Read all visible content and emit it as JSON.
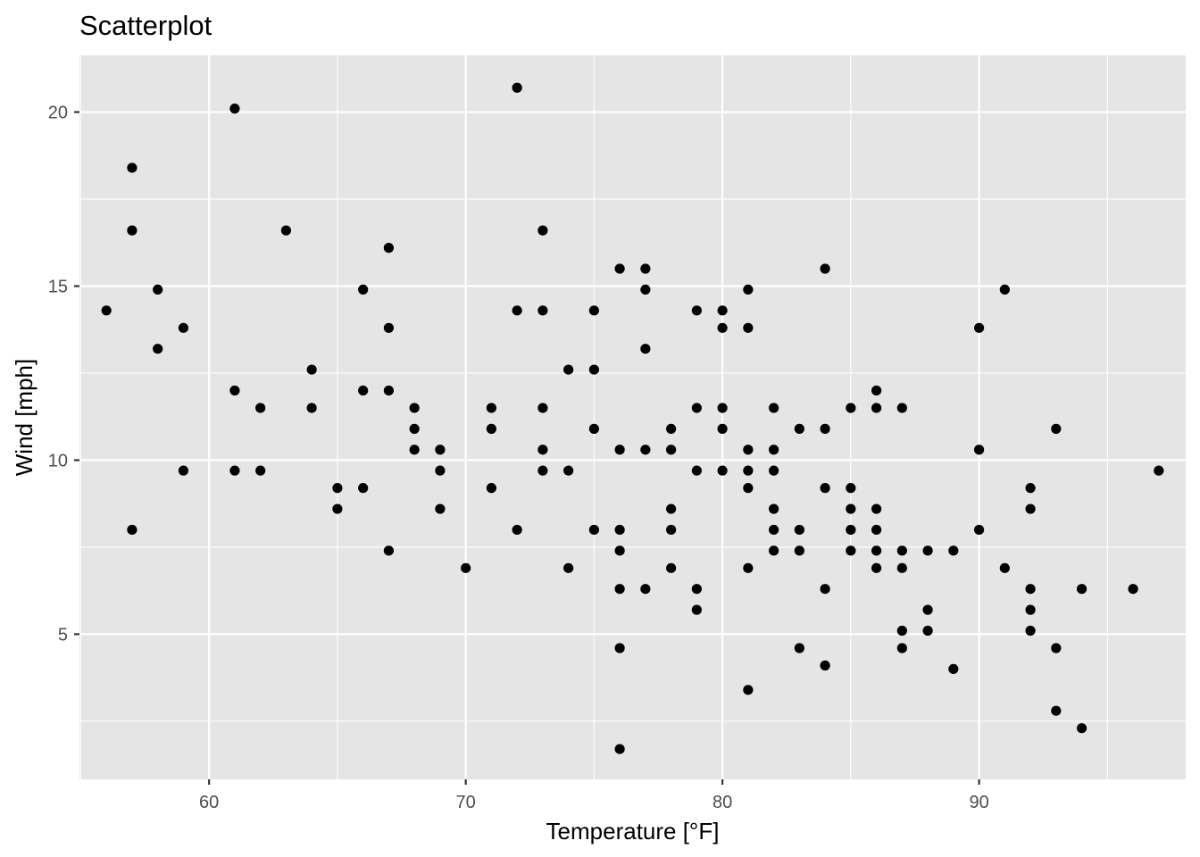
{
  "chart_data": {
    "type": "scatter",
    "title": "Scatterplot",
    "xlabel": "Temperature [°F]",
    "ylabel": "Wind [mph]",
    "xlim": [
      54.95,
      98.05
    ],
    "ylim": [
      0.83,
      21.63
    ],
    "x_ticks": [
      60,
      70,
      80,
      90
    ],
    "y_ticks": [
      5,
      10,
      15,
      20
    ],
    "x_tick_labels": [
      "60",
      "70",
      "80",
      "90"
    ],
    "y_tick_labels": [
      "5",
      "10",
      "15",
      "20"
    ],
    "grid": true,
    "panel_background": "#e5e5e5",
    "grid_color": "#ffffff",
    "point_color": "#000000",
    "points": [
      {
        "x": 56,
        "y": 14.3
      },
      {
        "x": 57,
        "y": 18.4
      },
      {
        "x": 57,
        "y": 16.6
      },
      {
        "x": 57,
        "y": 8.0
      },
      {
        "x": 58,
        "y": 14.9
      },
      {
        "x": 58,
        "y": 13.2
      },
      {
        "x": 59,
        "y": 13.8
      },
      {
        "x": 59,
        "y": 9.7
      },
      {
        "x": 61,
        "y": 20.1
      },
      {
        "x": 61,
        "y": 12.0
      },
      {
        "x": 61,
        "y": 9.7
      },
      {
        "x": 62,
        "y": 11.5
      },
      {
        "x": 62,
        "y": 9.7
      },
      {
        "x": 63,
        "y": 16.6
      },
      {
        "x": 64,
        "y": 12.6
      },
      {
        "x": 64,
        "y": 11.5
      },
      {
        "x": 65,
        "y": 9.2
      },
      {
        "x": 65,
        "y": 8.6
      },
      {
        "x": 66,
        "y": 14.9
      },
      {
        "x": 66,
        "y": 12.0
      },
      {
        "x": 66,
        "y": 9.2
      },
      {
        "x": 67,
        "y": 16.1
      },
      {
        "x": 67,
        "y": 13.8
      },
      {
        "x": 67,
        "y": 12.0
      },
      {
        "x": 67,
        "y": 7.4
      },
      {
        "x": 68,
        "y": 11.5
      },
      {
        "x": 68,
        "y": 10.9
      },
      {
        "x": 68,
        "y": 10.3
      },
      {
        "x": 69,
        "y": 10.3
      },
      {
        "x": 69,
        "y": 9.7
      },
      {
        "x": 69,
        "y": 8.6
      },
      {
        "x": 70,
        "y": 6.9
      },
      {
        "x": 71,
        "y": 11.5
      },
      {
        "x": 71,
        "y": 10.9
      },
      {
        "x": 71,
        "y": 9.2
      },
      {
        "x": 72,
        "y": 20.7
      },
      {
        "x": 72,
        "y": 14.3
      },
      {
        "x": 72,
        "y": 8.0
      },
      {
        "x": 73,
        "y": 16.6
      },
      {
        "x": 73,
        "y": 14.3
      },
      {
        "x": 73,
        "y": 11.5
      },
      {
        "x": 73,
        "y": 10.3
      },
      {
        "x": 73,
        "y": 9.7
      },
      {
        "x": 74,
        "y": 12.6
      },
      {
        "x": 74,
        "y": 9.7
      },
      {
        "x": 74,
        "y": 6.9
      },
      {
        "x": 75,
        "y": 14.3
      },
      {
        "x": 75,
        "y": 12.6
      },
      {
        "x": 75,
        "y": 10.9
      },
      {
        "x": 75,
        "y": 8.0
      },
      {
        "x": 76,
        "y": 15.5
      },
      {
        "x": 76,
        "y": 10.3
      },
      {
        "x": 76,
        "y": 8.0
      },
      {
        "x": 76,
        "y": 7.4
      },
      {
        "x": 76,
        "y": 6.3
      },
      {
        "x": 76,
        "y": 4.6
      },
      {
        "x": 76,
        "y": 1.7
      },
      {
        "x": 77,
        "y": 15.5
      },
      {
        "x": 77,
        "y": 14.9
      },
      {
        "x": 77,
        "y": 13.2
      },
      {
        "x": 77,
        "y": 10.3
      },
      {
        "x": 77,
        "y": 6.3
      },
      {
        "x": 78,
        "y": 10.9
      },
      {
        "x": 78,
        "y": 10.3
      },
      {
        "x": 78,
        "y": 8.6
      },
      {
        "x": 78,
        "y": 8.0
      },
      {
        "x": 78,
        "y": 6.9
      },
      {
        "x": 79,
        "y": 14.3
      },
      {
        "x": 79,
        "y": 11.5
      },
      {
        "x": 79,
        "y": 9.7
      },
      {
        "x": 79,
        "y": 6.3
      },
      {
        "x": 79,
        "y": 5.7
      },
      {
        "x": 80,
        "y": 14.3
      },
      {
        "x": 80,
        "y": 13.8
      },
      {
        "x": 80,
        "y": 11.5
      },
      {
        "x": 80,
        "y": 10.9
      },
      {
        "x": 80,
        "y": 9.7
      },
      {
        "x": 81,
        "y": 14.9
      },
      {
        "x": 81,
        "y": 13.8
      },
      {
        "x": 81,
        "y": 10.3
      },
      {
        "x": 81,
        "y": 9.7
      },
      {
        "x": 81,
        "y": 9.2
      },
      {
        "x": 81,
        "y": 6.9
      },
      {
        "x": 81,
        "y": 3.4
      },
      {
        "x": 82,
        "y": 11.5
      },
      {
        "x": 82,
        "y": 10.3
      },
      {
        "x": 82,
        "y": 9.7
      },
      {
        "x": 82,
        "y": 8.6
      },
      {
        "x": 82,
        "y": 8.0
      },
      {
        "x": 82,
        "y": 7.4
      },
      {
        "x": 83,
        "y": 10.9
      },
      {
        "x": 83,
        "y": 8.0
      },
      {
        "x": 83,
        "y": 7.4
      },
      {
        "x": 83,
        "y": 4.6
      },
      {
        "x": 84,
        "y": 15.5
      },
      {
        "x": 84,
        "y": 10.9
      },
      {
        "x": 84,
        "y": 9.2
      },
      {
        "x": 84,
        "y": 6.3
      },
      {
        "x": 84,
        "y": 4.1
      },
      {
        "x": 85,
        "y": 11.5
      },
      {
        "x": 85,
        "y": 9.2
      },
      {
        "x": 85,
        "y": 8.6
      },
      {
        "x": 85,
        "y": 8.0
      },
      {
        "x": 85,
        "y": 7.4
      },
      {
        "x": 86,
        "y": 12.0
      },
      {
        "x": 86,
        "y": 11.5
      },
      {
        "x": 86,
        "y": 8.6
      },
      {
        "x": 86,
        "y": 8.0
      },
      {
        "x": 86,
        "y": 7.4
      },
      {
        "x": 86,
        "y": 6.9
      },
      {
        "x": 87,
        "y": 11.5
      },
      {
        "x": 87,
        "y": 7.4
      },
      {
        "x": 87,
        "y": 6.9
      },
      {
        "x": 87,
        "y": 5.1
      },
      {
        "x": 87,
        "y": 4.6
      },
      {
        "x": 88,
        "y": 7.4
      },
      {
        "x": 88,
        "y": 5.7
      },
      {
        "x": 88,
        "y": 5.1
      },
      {
        "x": 89,
        "y": 7.4
      },
      {
        "x": 89,
        "y": 4.0
      },
      {
        "x": 90,
        "y": 13.8
      },
      {
        "x": 90,
        "y": 10.3
      },
      {
        "x": 90,
        "y": 8.0
      },
      {
        "x": 91,
        "y": 14.9
      },
      {
        "x": 91,
        "y": 6.9
      },
      {
        "x": 92,
        "y": 9.2
      },
      {
        "x": 92,
        "y": 8.6
      },
      {
        "x": 92,
        "y": 6.3
      },
      {
        "x": 92,
        "y": 5.7
      },
      {
        "x": 92,
        "y": 5.1
      },
      {
        "x": 93,
        "y": 10.9
      },
      {
        "x": 93,
        "y": 4.6
      },
      {
        "x": 93,
        "y": 2.8
      },
      {
        "x": 94,
        "y": 6.3
      },
      {
        "x": 94,
        "y": 2.3
      },
      {
        "x": 96,
        "y": 6.3
      },
      {
        "x": 97,
        "y": 9.7
      }
    ]
  }
}
